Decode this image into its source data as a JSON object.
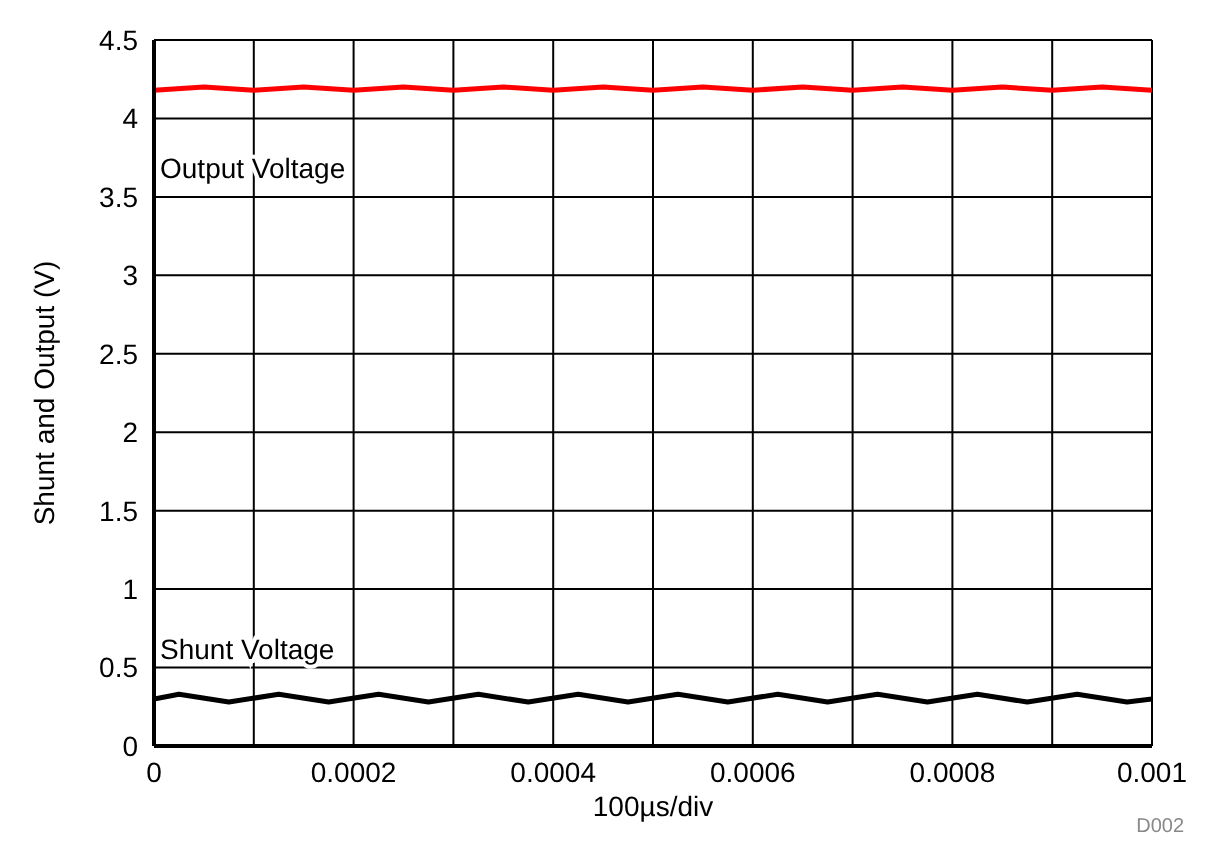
{
  "chart_data": {
    "type": "line",
    "xlabel": "100µs/div",
    "ylabel": "Shunt and Output (V)",
    "xlim": [
      0,
      0.001
    ],
    "ylim": [
      0,
      4.5
    ],
    "xticks": [
      0,
      {
        "value": 0.0001,
        "label": null
      },
      0.0002,
      {
        "value": 0.0003,
        "label": null
      },
      0.0004,
      {
        "value": 0.0005,
        "label": null
      },
      0.0006,
      {
        "value": 0.0007,
        "label": null
      },
      0.0008,
      {
        "value": 0.0009,
        "label": null
      },
      0.001
    ],
    "yticks": [
      0,
      0.5,
      1,
      1.5,
      2,
      2.5,
      3,
      3.5,
      4,
      4.5
    ],
    "grid": true,
    "marker": "none",
    "line_style": "solid",
    "series": [
      {
        "name": "Output Voltage",
        "color": "#ff0000",
        "x": [
          0,
          5e-05,
          0.0001,
          0.00015,
          0.0002,
          0.00025,
          0.0003,
          0.00035,
          0.0004,
          0.00045,
          0.0005,
          0.00055,
          0.0006,
          0.00065,
          0.0007,
          0.00075,
          0.0008,
          0.00085,
          0.0009,
          0.00095,
          0.001
        ],
        "values": [
          4.18,
          4.2,
          4.18,
          4.2,
          4.18,
          4.2,
          4.18,
          4.2,
          4.18,
          4.2,
          4.18,
          4.2,
          4.18,
          4.2,
          4.18,
          4.2,
          4.18,
          4.2,
          4.18,
          4.2,
          4.18
        ]
      },
      {
        "name": "Shunt Voltage",
        "color": "#000000",
        "x": [
          0,
          2.5e-05,
          7.5e-05,
          0.000125,
          0.000175,
          0.000225,
          0.000275,
          0.000325,
          0.000375,
          0.000425,
          0.000475,
          0.000525,
          0.000575,
          0.000625,
          0.000675,
          0.000725,
          0.000775,
          0.000825,
          0.000875,
          0.000925,
          0.000975,
          0.001
        ],
        "values": [
          0.3,
          0.33,
          0.28,
          0.33,
          0.28,
          0.33,
          0.28,
          0.33,
          0.28,
          0.33,
          0.28,
          0.33,
          0.28,
          0.33,
          0.28,
          0.33,
          0.28,
          0.33,
          0.28,
          0.33,
          0.28,
          0.3
        ]
      }
    ],
    "annotations": [
      "D002"
    ]
  }
}
